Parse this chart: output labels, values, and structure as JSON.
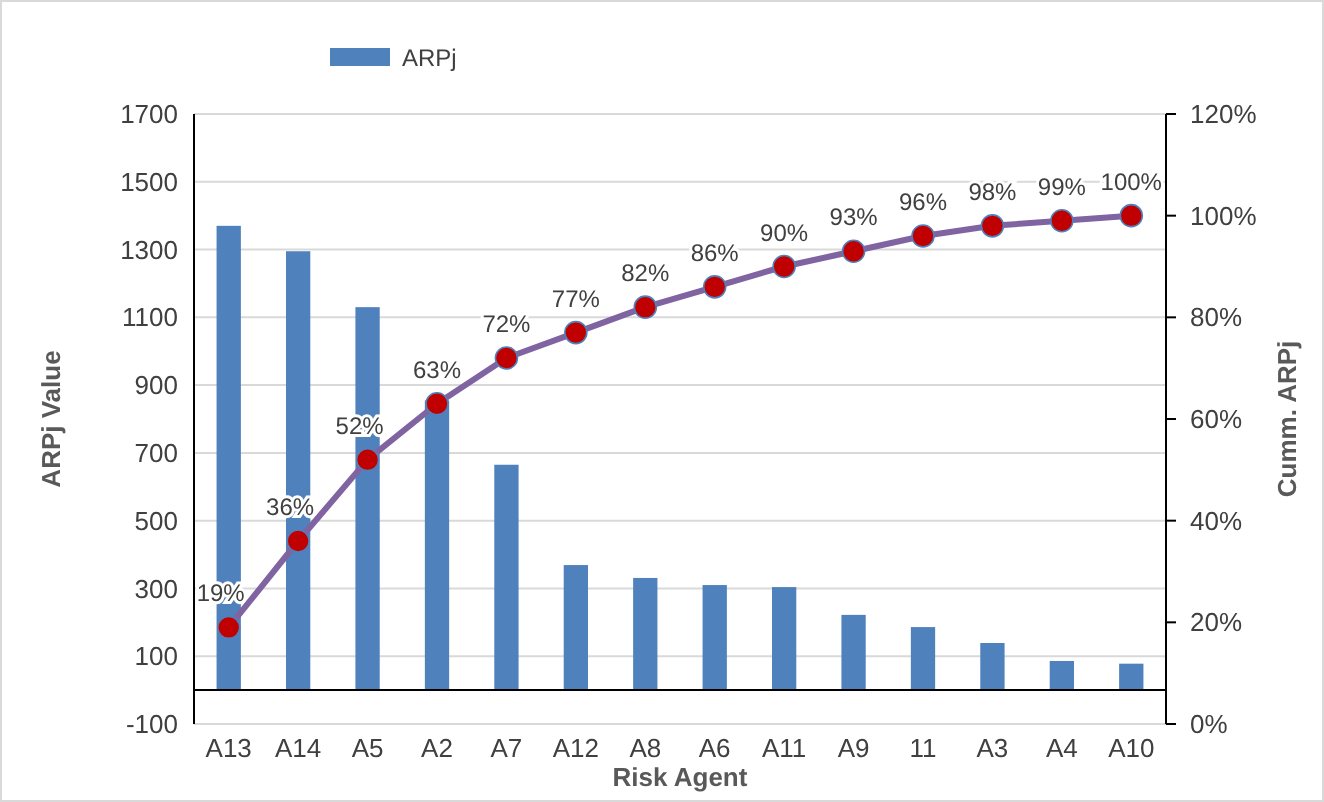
{
  "chart_data": {
    "type": "bar",
    "xlabel": "Risk Agent",
    "ylabel": "ARPj Value",
    "y2label": "Cumm. ARPj",
    "categories": [
      "A13",
      "A14",
      "A5",
      "A2",
      "A7",
      "A12",
      "A8",
      "A6",
      "A11",
      "A9",
      "11",
      "A3",
      "A4",
      "A10"
    ],
    "series": [
      {
        "name": "ARPj",
        "color": "#4f81bd",
        "values": [
          1370,
          1295,
          1130,
          855,
          665,
          369,
          331,
          310,
          304,
          222,
          186,
          139,
          86,
          78
        ]
      },
      {
        "type": "line",
        "axis": "y2",
        "color": "#8064a2",
        "marker": "circle",
        "values": [
          19,
          36,
          52,
          63,
          72,
          77,
          82,
          86,
          90,
          93,
          96,
          98,
          99,
          100
        ],
        "value_labels": [
          "19%",
          "36%",
          "52%",
          "63%",
          "72%",
          "77%",
          "82%",
          "86%",
          "90%",
          "93%",
          "96%",
          "98%",
          "99%",
          "100%"
        ]
      }
    ],
    "ylim": [
      -100,
      1700
    ],
    "yticks": [
      -100,
      100,
      300,
      500,
      700,
      900,
      1100,
      1300,
      1500,
      1700
    ],
    "y2lim": [
      0,
      120
    ],
    "y2ticks": [
      {
        "value": 0,
        "label": "0%"
      },
      {
        "value": 20,
        "label": "20%"
      },
      {
        "value": 40,
        "label": "40%"
      },
      {
        "value": 60,
        "label": "60%"
      },
      {
        "value": 80,
        "label": "80%"
      },
      {
        "value": 100,
        "label": "100%"
      },
      {
        "value": 120,
        "label": "120%"
      }
    ],
    "grid": "y",
    "legend": "top left"
  }
}
